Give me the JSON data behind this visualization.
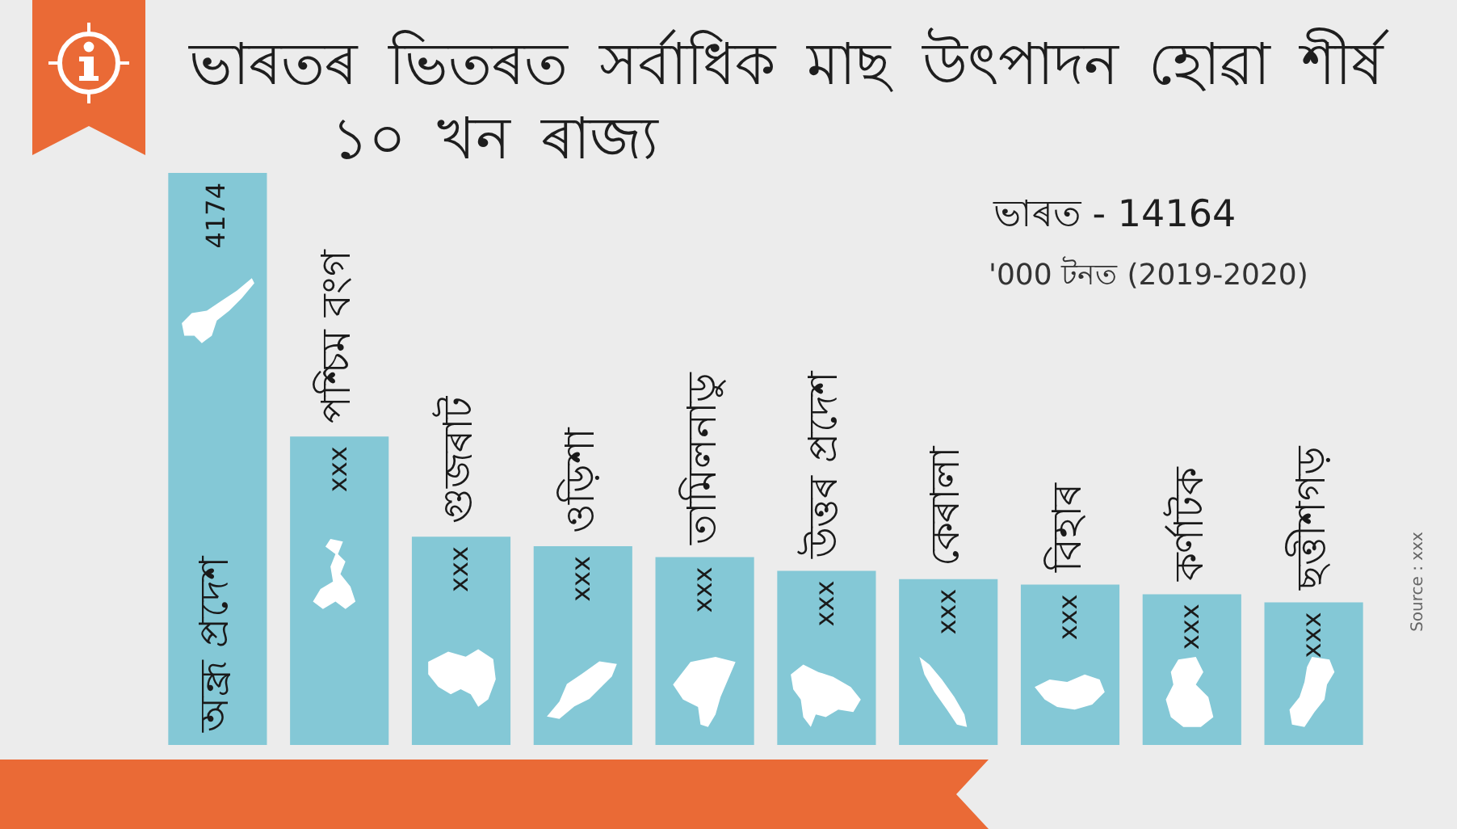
{
  "chart_data": {
    "type": "bar",
    "title": "ভাৰতৰ ভিতৰত সৰ্বাধিক মাছ উৎপাদন হোৱা শীৰ্ষ ১০ খন ৰাজ্য",
    "subtitle": "ভাৰত - 14164",
    "annotations": [
      "'000 টনত (2019-2020)",
      "Source : xxx"
    ],
    "categories": [
      "অন্ধ্ৰ প্ৰদেশ",
      "পশ্চিম বংগ",
      "গুজৰাট",
      "ওড়িশা",
      "তামিলনাডু",
      "উত্তৰ প্ৰদেশ",
      "কেৰালা",
      "বিহাৰ",
      "কৰ্ণাটক",
      "ছত্তীশগড়"
    ],
    "values": [
      4174,
      2250,
      1520,
      1450,
      1370,
      1270,
      1210,
      1170,
      1100,
      1040
    ],
    "value_labels": [
      "4174",
      "xxx",
      "xxx",
      "xxx",
      "xxx",
      "xxx",
      "xxx",
      "xxx",
      "xxx",
      "xxx"
    ],
    "color": "#84c8d6",
    "grid": false,
    "legend": false
  }
}
